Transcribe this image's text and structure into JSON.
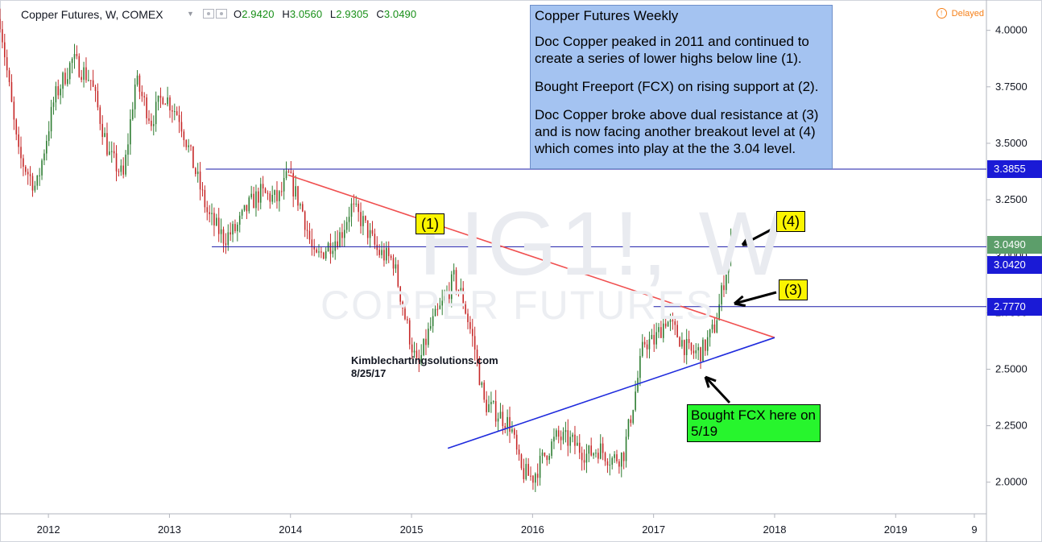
{
  "header": {
    "symbol": "Copper Futures, W, COMEX",
    "ohlc": [
      {
        "k": "O",
        "v": "2.9420"
      },
      {
        "k": "H",
        "v": "3.0560"
      },
      {
        "k": "L",
        "v": "2.9305"
      },
      {
        "k": "C",
        "v": "3.0490"
      }
    ],
    "delayed": "Delayed"
  },
  "watermark": {
    "symbol": "HG1!, W",
    "name": "COPPER FUTURES"
  },
  "note": {
    "title": "Copper Futures Weekly",
    "lines": [
      "Doc Copper peaked in 2011 and continued to create a series of lower highs below line (1).",
      "Bought Freeport (FCX) on rising support at (2).",
      "Doc Copper broke above dual resistance at (3) and is now facing another breakout level at (4) which comes into play at the the 3.04 level."
    ]
  },
  "labels": {
    "l1": "(1)",
    "l3": "(3)",
    "l4": "(4)",
    "fcx": "Bought FCX here on 5/19"
  },
  "credit": {
    "site": "Kimblechartingsolutions.com",
    "date": "8/25/17"
  },
  "colors": {
    "up": "#26a69a",
    "down": "#ef5350",
    "candle_up": "#2e7d32",
    "candle_down": "#c62828",
    "resistance": "#f05050",
    "support": "#1f2bdd",
    "hline": "#1a1aa8",
    "price_tag": "#5c9e6a",
    "level_tag": "#1a1ad6"
  },
  "chart_data": {
    "type": "candlestick",
    "title": "Copper Futures, W, COMEX",
    "y_ticks": [
      "4.0000",
      "3.7500",
      "3.5000",
      "3.2500",
      "3.0000",
      "2.7500",
      "2.5000",
      "2.2500",
      "2.0000"
    ],
    "x_ticks": [
      "2012",
      "2013",
      "2014",
      "2015",
      "2016",
      "2017",
      "2018",
      "2019",
      "9"
    ],
    "ylim": [
      1.86,
      4.12
    ],
    "xlim": [
      2011.6,
      2019.75
    ],
    "price_levels": [
      {
        "value": 3.3855,
        "label": "3.3855",
        "kind": "level"
      },
      {
        "value": 3.049,
        "label": "3.0490",
        "kind": "last"
      },
      {
        "value": 3.042,
        "label": "3.0420",
        "kind": "level"
      },
      {
        "value": 2.777,
        "label": "2.7770",
        "kind": "level"
      }
    ],
    "anchors": [
      [
        2011.6,
        4.05
      ],
      [
        2011.75,
        3.45
      ],
      [
        2011.9,
        3.3
      ],
      [
        2012.05,
        3.7
      ],
      [
        2012.2,
        3.87
      ],
      [
        2012.35,
        3.78
      ],
      [
        2012.5,
        3.45
      ],
      [
        2012.62,
        3.35
      ],
      [
        2012.72,
        3.78
      ],
      [
        2012.85,
        3.6
      ],
      [
        2012.95,
        3.72
      ],
      [
        2013.08,
        3.62
      ],
      [
        2013.2,
        3.4
      ],
      [
        2013.32,
        3.18
      ],
      [
        2013.45,
        3.08
      ],
      [
        2013.55,
        3.12
      ],
      [
        2013.65,
        3.22
      ],
      [
        2013.75,
        3.28
      ],
      [
        2013.9,
        3.25
      ],
      [
        2013.98,
        3.36
      ],
      [
        2014.1,
        3.2
      ],
      [
        2014.2,
        2.98
      ],
      [
        2014.3,
        3.04
      ],
      [
        2014.42,
        3.1
      ],
      [
        2014.5,
        3.22
      ],
      [
        2014.6,
        3.15
      ],
      [
        2014.72,
        3.02
      ],
      [
        2014.85,
        2.98
      ],
      [
        2014.95,
        2.72
      ],
      [
        2015.05,
        2.5
      ],
      [
        2015.15,
        2.68
      ],
      [
        2015.25,
        2.78
      ],
      [
        2015.35,
        2.9
      ],
      [
        2015.42,
        2.82
      ],
      [
        2015.52,
        2.6
      ],
      [
        2015.6,
        2.35
      ],
      [
        2015.72,
        2.3
      ],
      [
        2015.82,
        2.25
      ],
      [
        2015.9,
        2.05
      ],
      [
        2016.0,
        2.02
      ],
      [
        2016.1,
        2.12
      ],
      [
        2016.2,
        2.2
      ],
      [
        2016.32,
        2.18
      ],
      [
        2016.45,
        2.12
      ],
      [
        2016.55,
        2.15
      ],
      [
        2016.65,
        2.1
      ],
      [
        2016.75,
        2.12
      ],
      [
        2016.85,
        2.4
      ],
      [
        2016.92,
        2.62
      ],
      [
        2017.0,
        2.62
      ],
      [
        2017.1,
        2.72
      ],
      [
        2017.2,
        2.65
      ],
      [
        2017.3,
        2.57
      ],
      [
        2017.4,
        2.58
      ],
      [
        2017.5,
        2.68
      ],
      [
        2017.55,
        2.8
      ],
      [
        2017.6,
        2.95
      ],
      [
        2017.64,
        3.05
      ]
    ],
    "trendlines": [
      {
        "name": "(1)",
        "from": [
          2013.98,
          3.36
        ],
        "to": [
          2018.0,
          2.64
        ]
      },
      {
        "name": "(2)",
        "from": [
          2015.3,
          2.15
        ],
        "to": [
          2018.0,
          2.64
        ]
      }
    ],
    "hlines": [
      {
        "value": 3.3855,
        "from": 2013.3,
        "to": 2019.75
      },
      {
        "value": 3.042,
        "from": 2013.35,
        "to": 2019.75
      },
      {
        "value": 2.777,
        "from": 2017.0,
        "to": 2019.75
      }
    ]
  }
}
